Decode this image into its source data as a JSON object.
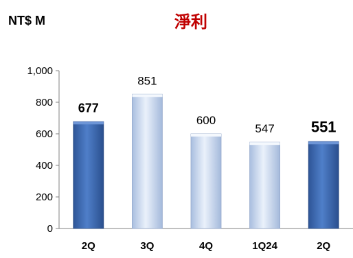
{
  "chart_data": {
    "type": "bar",
    "unit_label": "NT$ M",
    "title": "淨利",
    "title_color": "#C00000",
    "categories": [
      "2Q",
      "3Q",
      "4Q",
      "1Q24",
      "2Q"
    ],
    "values": [
      677,
      851,
      600,
      547,
      551
    ],
    "data_labels": [
      "677",
      "851",
      "600",
      "547",
      "551"
    ],
    "bar_styles": [
      "dark",
      "light",
      "light",
      "light",
      "dark"
    ],
    "label_styles": [
      "bold",
      "normal",
      "normal",
      "normal",
      "bigbold"
    ],
    "ylim": [
      0,
      1000
    ],
    "yticks": [
      0,
      200,
      400,
      600,
      800,
      1000
    ],
    "ytick_labels": [
      "0",
      "200",
      "400",
      "600",
      "800",
      "1,000"
    ],
    "grid": false,
    "colors": {
      "dark_bar": "#4472C4",
      "light_bar": "#C9D9F2",
      "axis": "#808080"
    }
  }
}
